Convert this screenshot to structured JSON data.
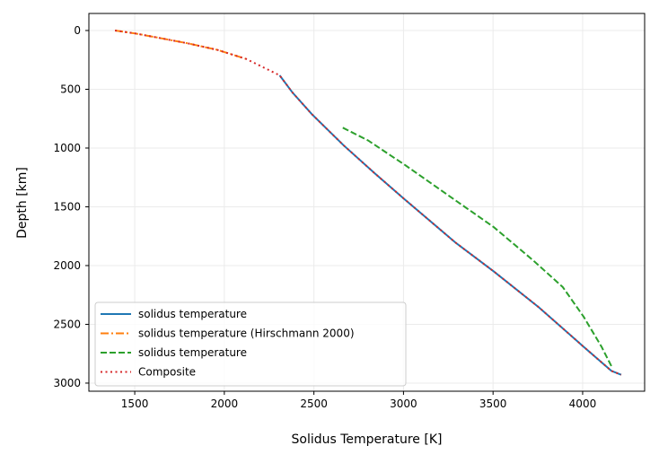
{
  "chart_data": {
    "type": "line",
    "title": "",
    "xlabel": "Solidus Temperature [K]",
    "ylabel": "Depth [km]",
    "xlim": [
      1244,
      4346
    ],
    "ylim": [
      3069,
      -145
    ],
    "y_inverted": true,
    "grid": true,
    "legend_position": "lower-left",
    "xticks": [
      1500,
      2000,
      2500,
      3000,
      3500,
      4000
    ],
    "yticks": [
      0,
      500,
      1000,
      1500,
      2000,
      2500,
      3000
    ],
    "series": [
      {
        "name": "solidus temperature",
        "color": "#1f77b4",
        "style": "solid",
        "x": [
          2309,
          2381,
          2489,
          2664,
          2840,
          3004,
          3288,
          3505,
          3756,
          4006,
          4160,
          4215
        ],
        "y": [
          382,
          529,
          712,
          975,
          1216,
          1433,
          1802,
          2051,
          2356,
          2692,
          2896,
          2929
        ]
      },
      {
        "name": "solidus temperature (Hirschmann 2000)",
        "color": "#ff7f0e",
        "style": "dashdot",
        "x": [
          1390,
          1503,
          1630,
          1796,
          1961,
          2122
        ],
        "y": [
          0,
          25,
          61,
          109,
          165,
          242
        ]
      },
      {
        "name": "solidus temperature",
        "color": "#2ca02c",
        "style": "dashed",
        "x": [
          2661,
          2803,
          3004,
          3505,
          3722,
          3889,
          4006,
          4106,
          4165
        ],
        "y": [
          827,
          936,
          1140,
          1674,
          1954,
          2183,
          2437,
          2692,
          2870
        ]
      },
      {
        "name": "Composite",
        "color": "#d62728",
        "style": "dotted",
        "x": [
          1390,
          1503,
          1630,
          1796,
          1961,
          2122,
          2309,
          2381,
          2489,
          2664,
          2840,
          3004,
          3288,
          3505,
          3756,
          4006,
          4160,
          4215
        ],
        "y": [
          0,
          25,
          61,
          109,
          165,
          242,
          382,
          529,
          712,
          975,
          1216,
          1433,
          1802,
          2051,
          2356,
          2692,
          2896,
          2929
        ]
      }
    ]
  }
}
